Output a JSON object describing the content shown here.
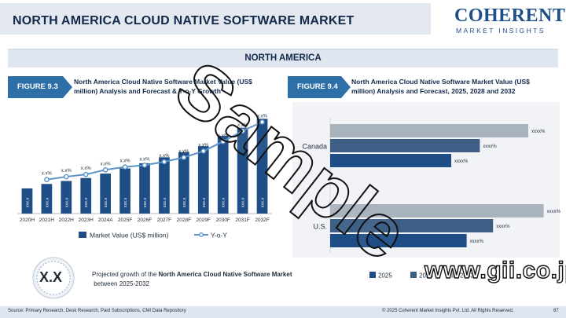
{
  "header": {
    "title": "NORTH AMERICA CLOUD NATIVE SOFTWARE MARKET",
    "logo_name": "COHERENT",
    "logo_sub": "MARKET INSIGHTS"
  },
  "region": "NORTH AMERICA",
  "figure_left": {
    "tag": "FIGURE 9.3",
    "title_line1": "North America Cloud Native Software Market Value (US$",
    "title_line2": "million) Analysis and Forecast & Y-o-Y Growth"
  },
  "figure_right": {
    "tag": "FIGURE 9.4",
    "title_line1": "North America Cloud Native Software Market Value (US$",
    "title_line2": "million) Analysis and Forecast, 2025, 2028 and 2032"
  },
  "chart_data": [
    {
      "type": "bar",
      "categories": [
        "2020H",
        "2021H",
        "2022H",
        "2023H",
        "2024A",
        "2025F",
        "2026F",
        "2027F",
        "2028F",
        "2029F",
        "2030F",
        "2031F",
        "2032F"
      ],
      "series": [
        {
          "name": "Market Value (US$ million)",
          "type": "bar",
          "values": [
            34,
            40,
            44,
            48,
            54,
            61,
            68,
            76,
            83,
            91,
            105,
            116,
            128
          ],
          "value_labels": [
            "xxx.x",
            "xxx.x",
            "xxx.x",
            "xxx.x",
            "xxx.x",
            "xxx.x",
            "xxx.x",
            "xxx.x",
            "xxx.x",
            "xxx.x",
            "xxx.x",
            "xxx.x",
            "xxx.x"
          ]
        },
        {
          "name": "Y-o-Y",
          "type": "line",
          "values": [
            null,
            11.8,
            12.8,
            13.6,
            15.2,
            16.2,
            16.8,
            18.0,
            19.5,
            21.7,
            25.0,
            28.7,
            31.8
          ],
          "value_labels": [
            "",
            "x.x%",
            "x.x%",
            "x.x%",
            "x.x%",
            "x.x%",
            "x.x%",
            "x.x%",
            "x.x%",
            "x.x%",
            "x.x%",
            "x.x%",
            "x.x%"
          ]
        }
      ],
      "ylim": [
        0,
        140
      ],
      "y2lim": [
        0,
        36
      ],
      "legend": "bottom",
      "grid": false,
      "colors": {
        "bar": "#1f4e86",
        "line": "#5b93c9"
      }
    },
    {
      "type": "bar",
      "orientation": "horizontal",
      "categories": [
        "Canada",
        "U.S."
      ],
      "series": [
        {
          "name": "2025",
          "values": [
            55,
            62
          ],
          "value_label": "xxxx%",
          "color": "#1f4e86"
        },
        {
          "name": "2028",
          "values": [
            68,
            74
          ],
          "value_label": "xxxx%",
          "color": "#3d5f86"
        },
        {
          "name": "2032",
          "values": [
            90,
            97
          ],
          "value_label": "xxxx%",
          "color": "#a9b3be"
        }
      ],
      "xlim": [
        0,
        100
      ],
      "legend": "bottom",
      "grid": false
    }
  ],
  "callout": {
    "value": "X.X",
    "text_prefix": "Projected growth of the",
    "text_bold": "North America Cloud Native Software Market",
    "text_suffix": "between 2025-2032"
  },
  "footer": {
    "source": "Source: Primary Research, Desk Research, Paid Subscriptions, CMI Data Repository",
    "copyright": "© 2025 Coherent Market Insights Pvt. Ltd. All Rights Reserved.",
    "page": "87"
  },
  "watermarks": {
    "sample": "Sample",
    "site": "www.gii.co.jp"
  }
}
